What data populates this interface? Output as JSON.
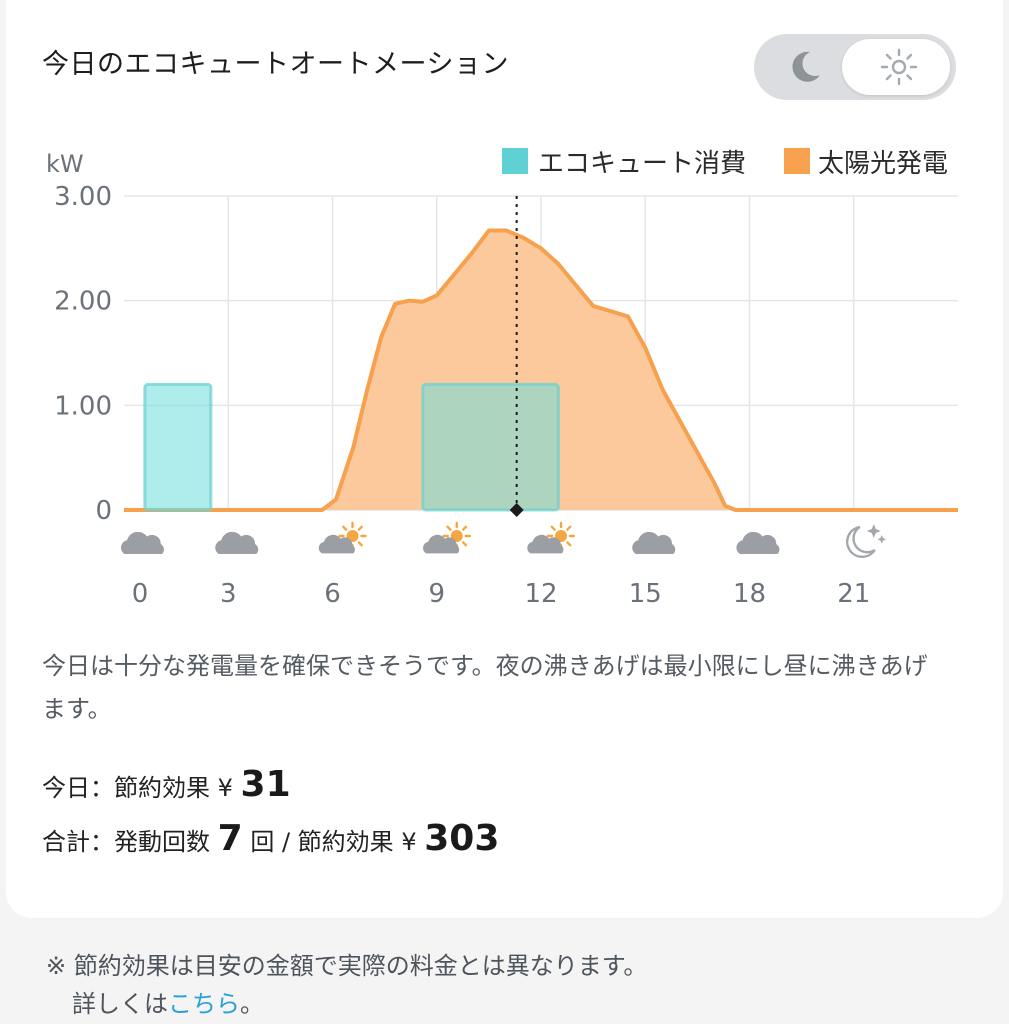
{
  "header": {
    "title": "今日のエコキュートオートメーション"
  },
  "toggle": {
    "options": [
      "moon-icon",
      "sun-icon"
    ],
    "selected": "sun-icon"
  },
  "chart_data": {
    "type": "area",
    "ylabel": "kW",
    "ylim": [
      0,
      3
    ],
    "yticks": [
      "3.00",
      "2.00",
      "1.00",
      "0"
    ],
    "xlim": [
      0,
      24
    ],
    "xticks": [
      "0",
      "3",
      "6",
      "9",
      "12",
      "15",
      "18",
      "21"
    ],
    "current_time": 11.3,
    "legend": {
      "position": "top-right"
    },
    "series": [
      {
        "name": "エコキュート消費",
        "type": "bar",
        "color": "#5fd1d4",
        "segments": [
          {
            "start": 0.6,
            "end": 2.5,
            "value": 1.2
          },
          {
            "start": 8.6,
            "end": 12.5,
            "value": 1.2
          }
        ]
      },
      {
        "name": "太陽光発電",
        "type": "area",
        "color": "#f7a04e",
        "x": [
          0,
          5.7,
          6.1,
          6.6,
          7.0,
          7.4,
          7.8,
          8.2,
          8.6,
          9.0,
          9.5,
          10.0,
          10.5,
          11.0,
          11.5,
          12.0,
          12.5,
          13.0,
          13.5,
          14.0,
          14.5,
          15.0,
          15.5,
          16.0,
          16.5,
          17.0,
          17.3,
          17.6,
          24
        ],
        "values": [
          0,
          0,
          0.1,
          0.6,
          1.15,
          1.65,
          1.97,
          2.0,
          1.99,
          2.05,
          2.25,
          2.45,
          2.67,
          2.67,
          2.6,
          2.5,
          2.35,
          2.15,
          1.95,
          1.9,
          1.85,
          1.55,
          1.15,
          0.85,
          0.55,
          0.25,
          0.04,
          0,
          0
        ]
      }
    ],
    "weather": [
      "cloud-icon",
      "cloud-icon",
      "partly-sunny-icon",
      "partly-sunny-icon",
      "partly-sunny-icon",
      "cloud-icon",
      "cloud-icon",
      "moon-stars-icon"
    ]
  },
  "description": "今日は十分な発電量を確保できそうです。夜の沸きあげは最小限にし昼に沸きあげます。",
  "stats": {
    "today_prefix": "今日：節約効果 ¥",
    "today_saving": "31",
    "total_prefix": "合計：発動回数",
    "total_count": "7",
    "total_unit": "回 / 節約効果 ¥",
    "total_saving": "303"
  },
  "note": {
    "line1": "※ 節約効果は目安の金額で実際の料金とは異なります。",
    "line2_prefix": "詳しくは",
    "link": "こちら",
    "line2_suffix": "。"
  }
}
